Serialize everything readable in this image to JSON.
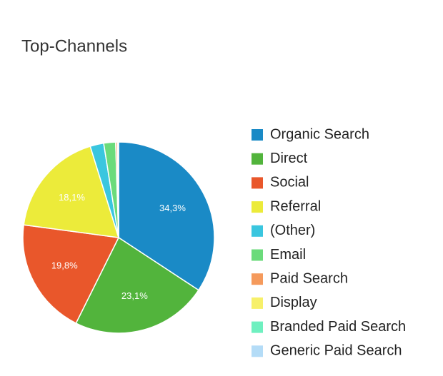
{
  "chart_data": {
    "type": "pie",
    "title": "Top-Channels",
    "categories": [
      "Organic Search",
      "Direct",
      "Social",
      "Referral",
      "(Other)",
      "Email",
      "Paid Search",
      "Display",
      "Branded Paid Search",
      "Generic Paid Search"
    ],
    "values": [
      34.3,
      23.1,
      19.8,
      18.1,
      2.3,
      2.0,
      0.3,
      0.1,
      0.05,
      0.05
    ],
    "value_labels": [
      "34,3%",
      "23,1%",
      "19,8%",
      "18,1%",
      null,
      null,
      null,
      null,
      null,
      null
    ],
    "colors": [
      "#1a8ac6",
      "#52b43c",
      "#e9572b",
      "#eceb3a",
      "#3ac6df",
      "#6bdb7b",
      "#f59a5c",
      "#f7f06a",
      "#6ff0c0",
      "#b4dcf7"
    ],
    "legend": "right"
  }
}
